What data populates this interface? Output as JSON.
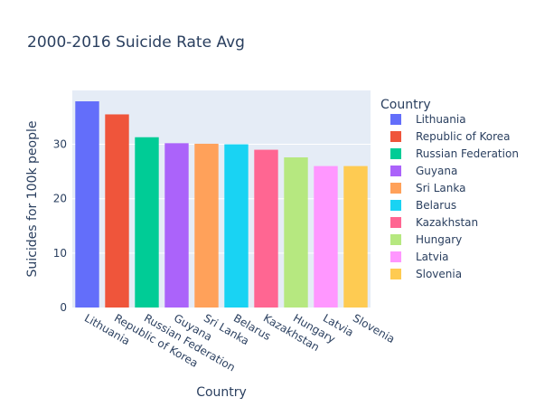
{
  "chart_data": {
    "type": "bar",
    "title": "2000-2016 Suicide Rate Avg",
    "xlabel": "Country",
    "ylabel": "Suicides for 100k people",
    "categories": [
      "Lithuania",
      "Republic of Korea",
      "Russian Federation",
      "Guyana",
      "Sri Lanka",
      "Belarus",
      "Kazakhstan",
      "Hungary",
      "Latvia",
      "Slovenia"
    ],
    "values": [
      37.9,
      35.5,
      31.3,
      30.2,
      30.1,
      30.0,
      29.0,
      27.6,
      26.0,
      26.0
    ],
    "colors": [
      "#636efa",
      "#ef553b",
      "#00cc96",
      "#ab63fa",
      "#ffa15a",
      "#19d3f3",
      "#ff6692",
      "#b6e880",
      "#ff97ff",
      "#fecb52"
    ],
    "ylim": [
      0,
      39.9
    ],
    "yticks": [
      0,
      10,
      20,
      30
    ],
    "grid": true,
    "plot_bg": "#e5ecf6",
    "legend": {
      "title": "Country",
      "placement": "right"
    }
  }
}
